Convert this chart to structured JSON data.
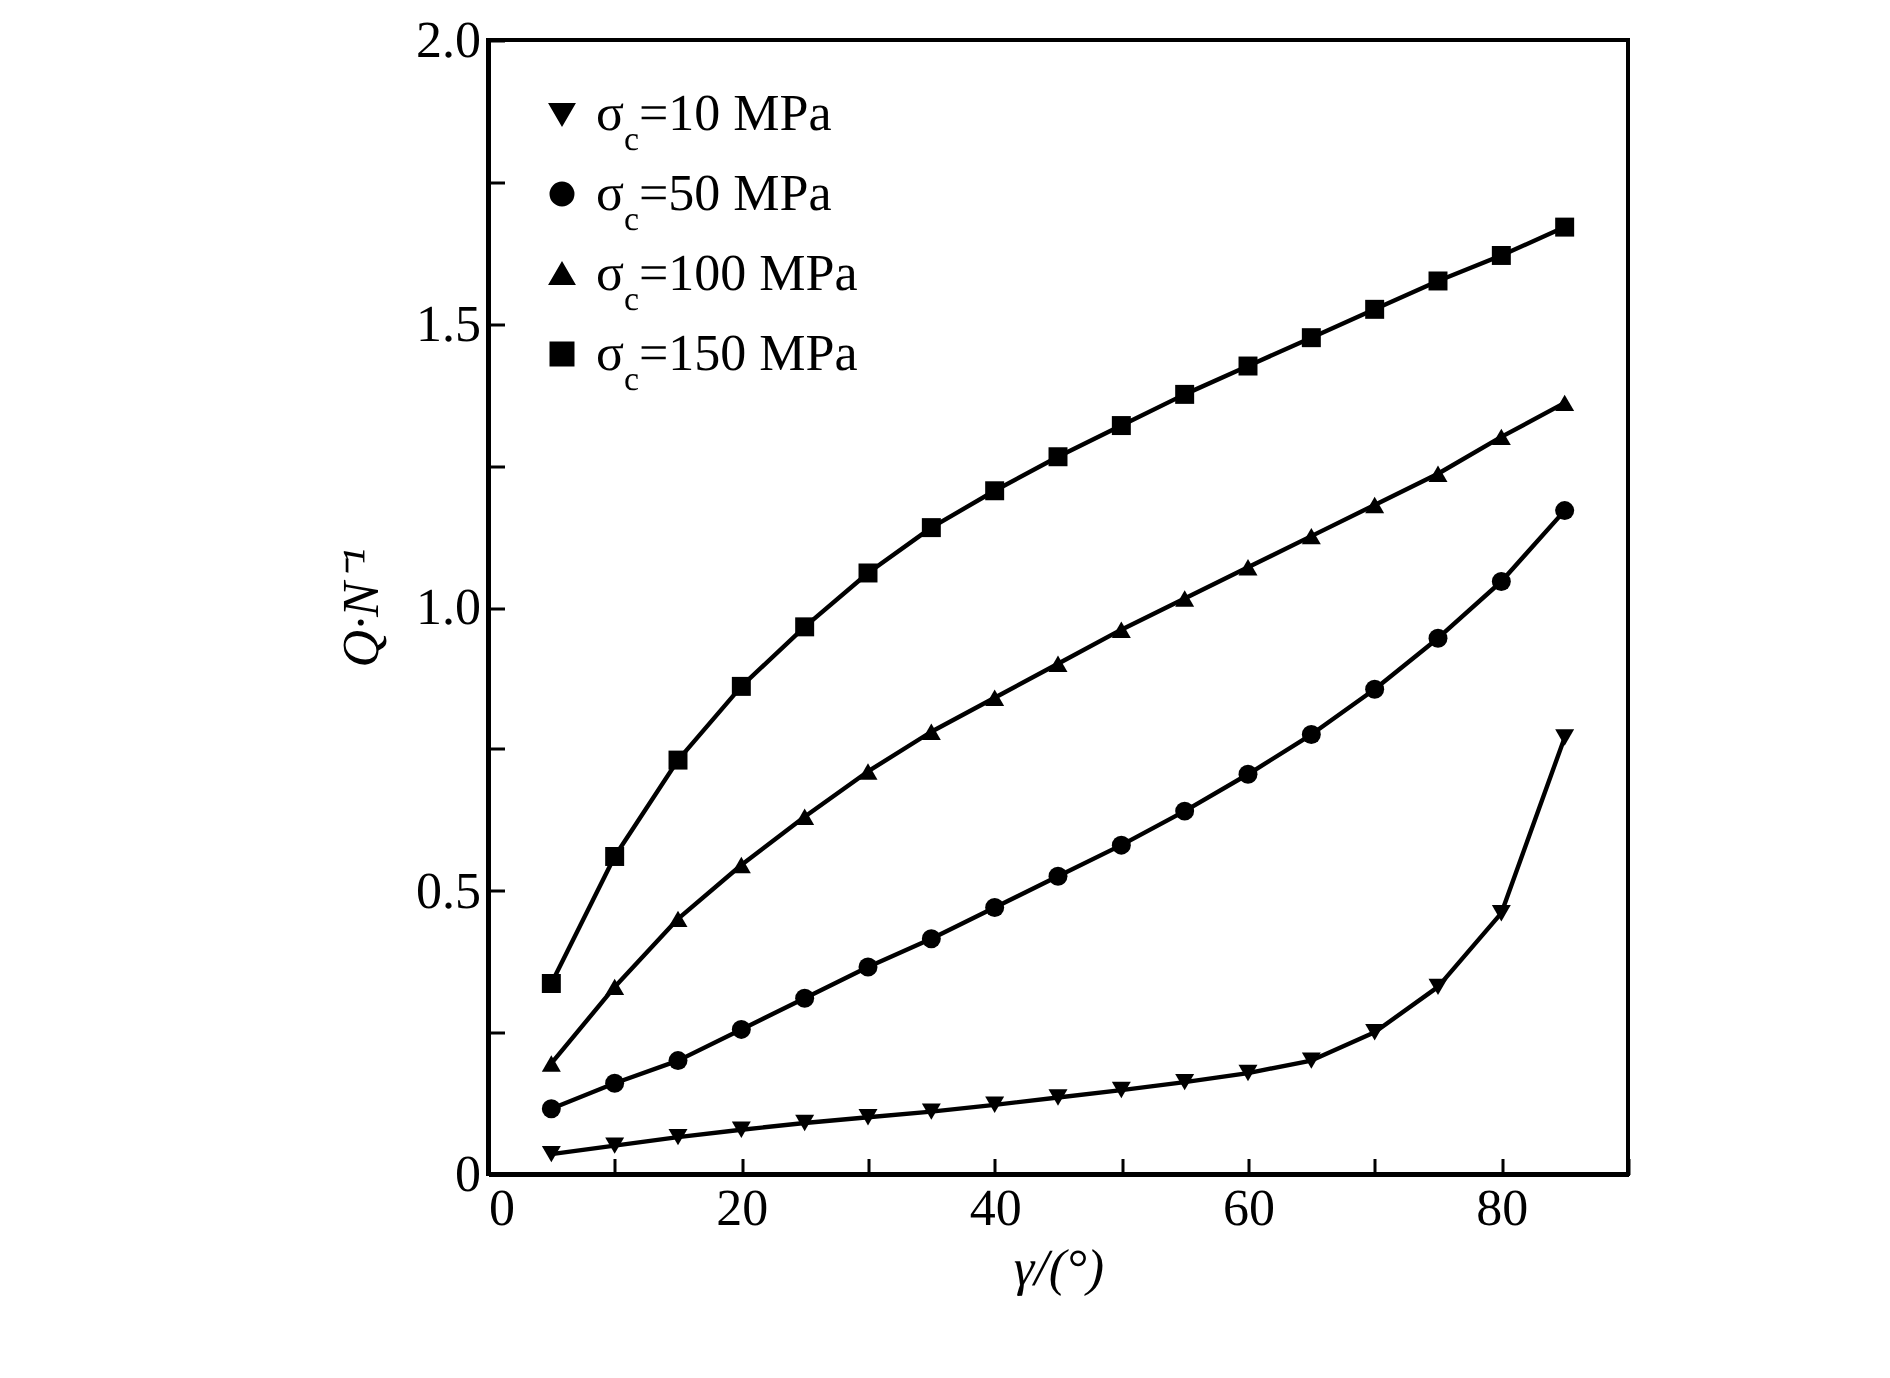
{
  "chart_data": {
    "type": "line",
    "xlabel": "γ/(°)",
    "ylabel": "Q·N⁻¹",
    "x": [
      5,
      10,
      15,
      20,
      25,
      30,
      35,
      40,
      45,
      50,
      55,
      60,
      65,
      70,
      75,
      80,
      85
    ],
    "series": [
      {
        "name": "σ$_{c}$=10 MPa",
        "color": "#000000",
        "marker": "triangle-down",
        "values": [
          0.035,
          0.05,
          0.065,
          0.078,
          0.09,
          0.1,
          0.11,
          0.122,
          0.135,
          0.148,
          0.162,
          0.178,
          0.2,
          0.25,
          0.33,
          0.46,
          0.77
        ]
      },
      {
        "name": "σ$_{c}$=50 MPa",
        "color": "#000000",
        "marker": "circle",
        "values": [
          0.115,
          0.16,
          0.2,
          0.255,
          0.31,
          0.365,
          0.415,
          0.47,
          0.525,
          0.58,
          0.64,
          0.705,
          0.775,
          0.855,
          0.945,
          1.045,
          1.17
        ]
      },
      {
        "name": "σ$_{c}$=100 MPa",
        "color": "#000000",
        "marker": "triangle",
        "values": [
          0.195,
          0.33,
          0.45,
          0.545,
          0.63,
          0.71,
          0.78,
          0.84,
          0.9,
          0.96,
          1.015,
          1.07,
          1.125,
          1.18,
          1.235,
          1.3,
          1.36
        ]
      },
      {
        "name": "σ$_{c}$=150 MPa",
        "color": "#000000",
        "marker": "square",
        "values": [
          0.336,
          0.56,
          0.73,
          0.86,
          0.965,
          1.06,
          1.14,
          1.205,
          1.265,
          1.32,
          1.375,
          1.425,
          1.475,
          1.525,
          1.575,
          1.62,
          1.67
        ]
      }
    ],
    "xlim": [
      0,
      90
    ],
    "xticks": [
      0,
      {
        "value": 10,
        "label": null
      },
      20,
      {
        "value": 30,
        "label": null
      },
      40,
      {
        "value": 50,
        "label": null
      },
      60,
      {
        "value": 70,
        "label": null
      },
      80,
      {
        "value": 90,
        "label": null
      }
    ],
    "ylim": [
      0,
      2
    ],
    "yticks": [
      0,
      {
        "value": 0.25,
        "label": null
      },
      {
        "value": 0.5,
        "label": "0.5"
      },
      {
        "value": 0.75,
        "label": null
      },
      {
        "value": 1,
        "label": "1.0"
      },
      {
        "value": 1.25,
        "label": null
      },
      {
        "value": 1.5,
        "label": "1.5"
      },
      {
        "value": 1.75,
        "label": null
      },
      {
        "value": 2,
        "label": "2.0"
      }
    ],
    "grid": false,
    "legend": "top left",
    "line_style": "solid"
  }
}
